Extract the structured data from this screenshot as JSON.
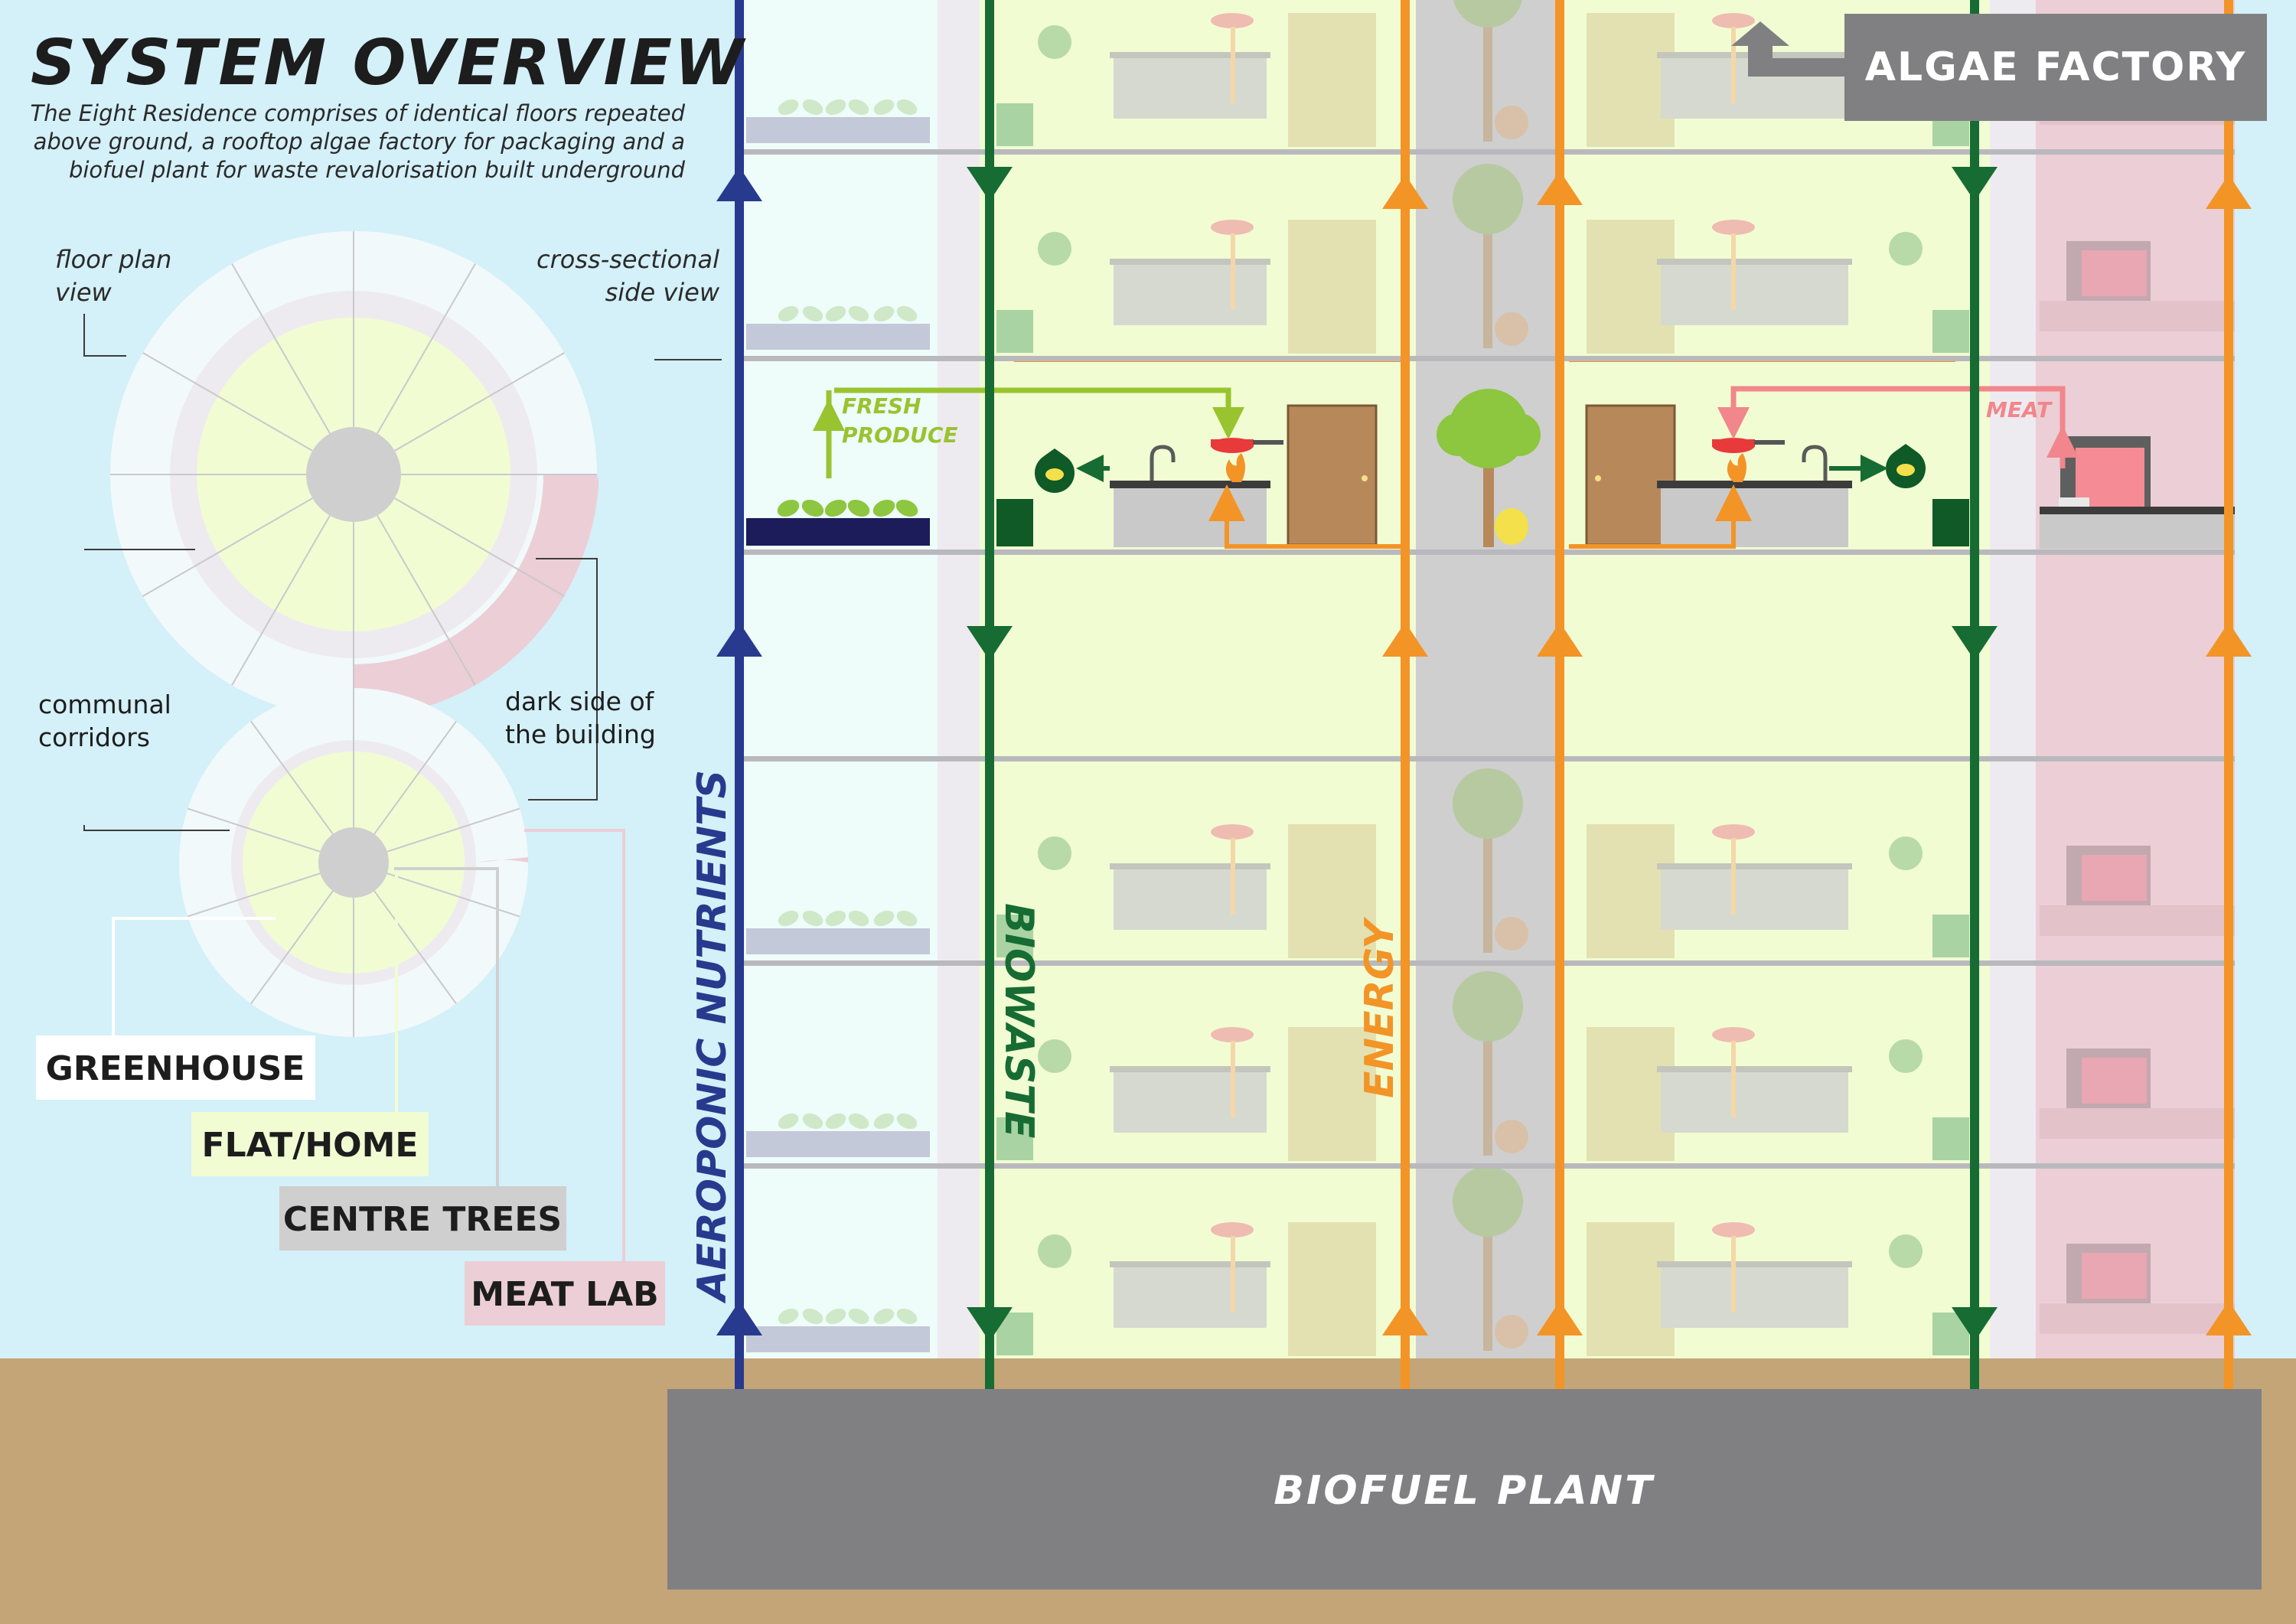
{
  "title": "SYSTEM OVERVIEW",
  "description": [
    "The Eight Residence comprises of identical floors repeated",
    "above ground, a rooftop algae factory for packaging and a",
    "biofuel plant for waste revalorisation built underground"
  ],
  "annotations": {
    "floor_plan": [
      "floor plan",
      "view"
    ],
    "cross_section": [
      "cross-sectional",
      "side view"
    ],
    "corridors": [
      "communal",
      "corridors"
    ],
    "dark_side": [
      "dark side of",
      "the building"
    ]
  },
  "legend": {
    "greenhouse": "GREENHOUSE",
    "flat": "FLAT/HOME",
    "trees": "CENTRE TREES",
    "meatlab": "MEAT LAB"
  },
  "flows": {
    "aeroponic": "AEROPONIC NUTRIENTS",
    "biowaste": "BIOWASTE",
    "energy": "ENERGY",
    "fresh": [
      "FRESH",
      "PRODUCE"
    ],
    "meat": "MEAT"
  },
  "facilities": {
    "algae": "ALGAE FACTORY",
    "biofuel": "BIOFUEL PLANT"
  },
  "colors": {
    "sky": "#d4f0f8",
    "ground": "#c3a578",
    "greenhouse": "#eefcfa",
    "flat": "#f1fcd3",
    "trees": "#cfcfcf",
    "meatlab": "#ecced6",
    "aeroponic": "#283a8e",
    "biowaste": "#166c33",
    "energy": "#f39426",
    "fresh": "#99c32f",
    "meat": "#f1868c",
    "plant": "#808083"
  },
  "icons": [
    "greenhouse-sprout-icon",
    "frying-pan-icon",
    "flame-icon",
    "compost-bag-icon",
    "fridge-icon",
    "door-icon",
    "tree-icon",
    "lemon-icon",
    "apple-icon",
    "banana-icon",
    "orange-icon",
    "arrow-up-icon",
    "arrow-down-icon"
  ]
}
